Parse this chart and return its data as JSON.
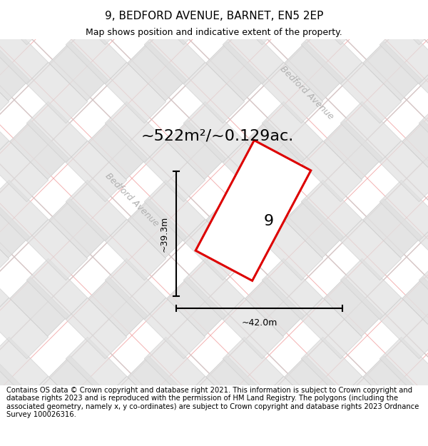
{
  "title": "9, BEDFORD AVENUE, BARNET, EN5 2EP",
  "subtitle": "Map shows position and indicative extent of the property.",
  "area_label": "~522m²/~0.129ac.",
  "dim_width": "~42.0m",
  "dim_height": "~39.3m",
  "property_number": "9",
  "street_label": "Bedford Avenue",
  "footer": "Contains OS data © Crown copyright and database right 2021. This information is subject to Crown copyright and database rights 2023 and is reproduced with the permission of HM Land Registry. The polygons (including the associated geometry, namely x, y co-ordinates) are subject to Crown copyright and database rights 2023 Ordnance Survey 100026316.",
  "bg_color": "#ffffff",
  "map_bg": "#ffffff",
  "polygon_color": "#dd0000",
  "grid_line_color_gray": "#c8c8c8",
  "grid_line_color_pink": "#f2aaaa",
  "block_face_color": "#e0e0e0",
  "block_edge_color": "#cccccc",
  "title_fontsize": 11,
  "subtitle_fontsize": 9,
  "footer_fontsize": 7.2,
  "area_fontsize": 16,
  "dim_fontsize": 9,
  "street_fontsize": 9,
  "property_num_fontsize": 16
}
